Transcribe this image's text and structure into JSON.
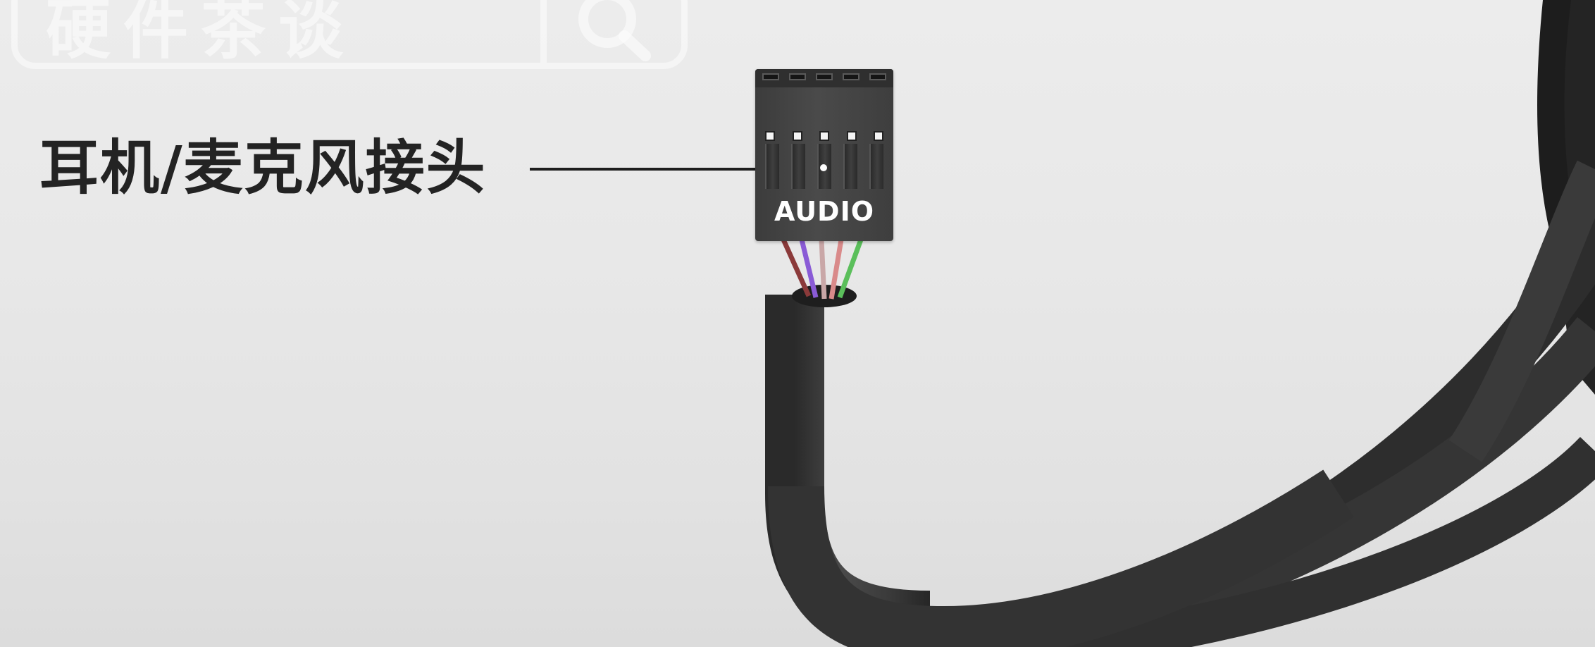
{
  "watermark": {
    "text": "硬件茶谈",
    "icon": "search-icon"
  },
  "callout": {
    "label": "耳机/麦克风接头"
  },
  "connector": {
    "label": "AUDIO",
    "pins_top": 5,
    "wire_colors": [
      "#8b3a3a",
      "#8a5bd6",
      "#c9a7a7",
      "#d98a8a",
      "#5bbf5b"
    ]
  },
  "colors": {
    "background": "#e8e8e8",
    "cable": "#3a3a3a",
    "connector_body": "#444444",
    "label_text": "#232323"
  }
}
